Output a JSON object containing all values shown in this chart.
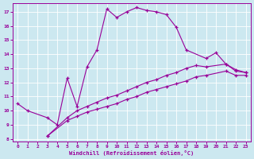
{
  "xlabel": "Windchill (Refroidissement éolien,°C)",
  "background_color": "#cce8f0",
  "line_color": "#990099",
  "grid_color": "#aaccdd",
  "xlim": [
    -0.5,
    23.5
  ],
  "ylim": [
    7.8,
    17.6
  ],
  "xticks": [
    0,
    1,
    2,
    3,
    4,
    5,
    6,
    7,
    8,
    9,
    10,
    11,
    12,
    13,
    14,
    15,
    16,
    17,
    18,
    19,
    20,
    21,
    22,
    23
  ],
  "yticks": [
    8,
    9,
    10,
    11,
    12,
    13,
    14,
    15,
    16,
    17
  ],
  "series1": {
    "x": [
      0,
      1,
      3,
      4,
      5,
      6,
      7,
      8,
      9,
      10,
      11,
      12,
      13,
      14,
      15,
      16,
      17,
      19,
      20,
      21,
      22,
      23
    ],
    "y": [
      10.5,
      10.0,
      9.5,
      9.0,
      12.3,
      10.3,
      13.1,
      14.3,
      17.2,
      16.6,
      17.0,
      17.3,
      17.1,
      17.0,
      16.8,
      15.9,
      14.3,
      13.7,
      14.1,
      13.3,
      12.8,
      12.7
    ]
  },
  "series2": {
    "x": [
      3,
      5,
      6,
      7,
      8,
      9,
      10,
      11,
      12,
      13,
      14,
      15,
      16,
      17,
      18,
      19,
      21,
      22,
      23
    ],
    "y": [
      8.2,
      9.5,
      10.0,
      10.3,
      10.6,
      10.9,
      11.1,
      11.4,
      11.7,
      12.0,
      12.2,
      12.5,
      12.7,
      13.0,
      13.2,
      13.1,
      13.3,
      12.9,
      12.7
    ]
  },
  "series3": {
    "x": [
      3,
      5,
      6,
      7,
      8,
      9,
      10,
      11,
      12,
      13,
      14,
      15,
      16,
      17,
      18,
      19,
      21,
      22,
      23
    ],
    "y": [
      8.2,
      9.3,
      9.6,
      9.9,
      10.1,
      10.3,
      10.5,
      10.8,
      11.0,
      11.3,
      11.5,
      11.7,
      11.9,
      12.1,
      12.4,
      12.5,
      12.8,
      12.5,
      12.5
    ]
  }
}
